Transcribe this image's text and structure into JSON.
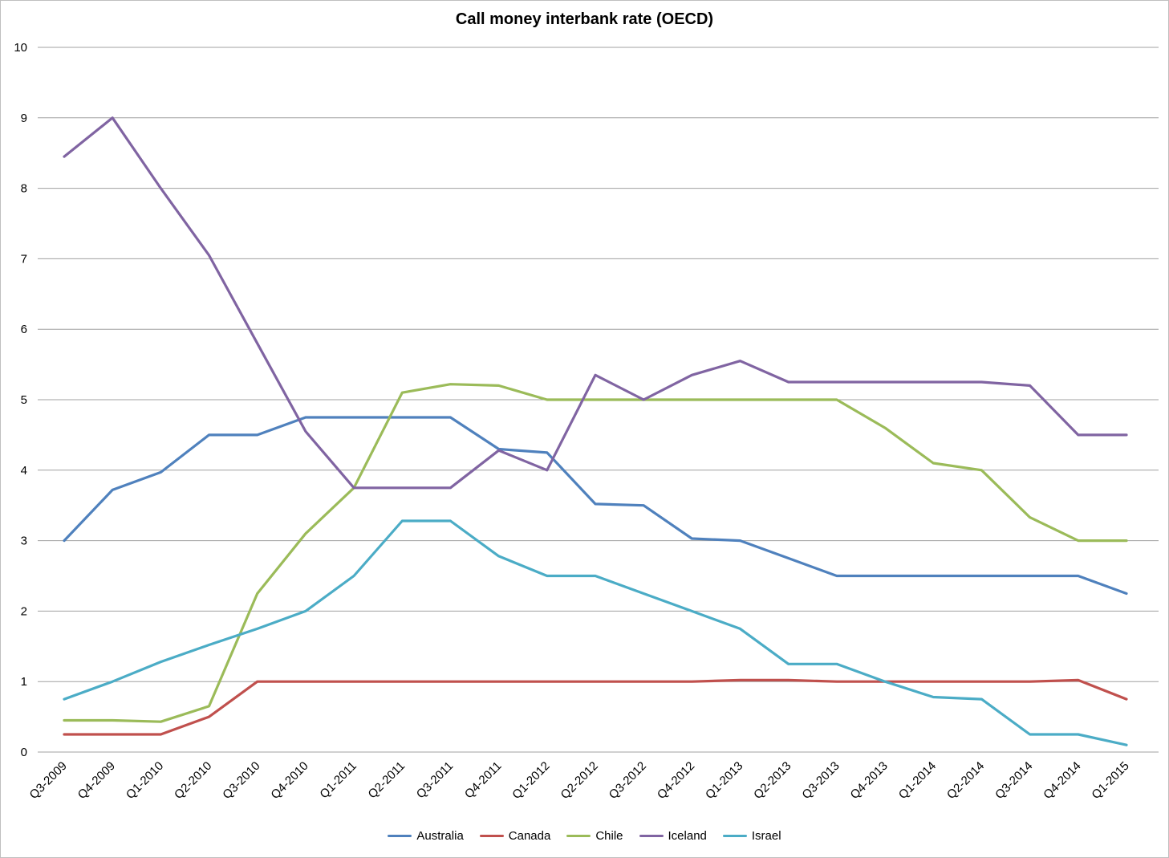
{
  "chart_data": {
    "type": "line",
    "title": "Call money interbank rate (OECD)",
    "categories": [
      "Q3-2009",
      "Q4-2009",
      "Q1-2010",
      "Q2-2010",
      "Q3-2010",
      "Q4-2010",
      "Q1-2011",
      "Q2-2011",
      "Q3-2011",
      "Q4-2011",
      "Q1-2012",
      "Q2-2012",
      "Q3-2012",
      "Q4-2012",
      "Q1-2013",
      "Q2-2013",
      "Q3-2013",
      "Q4-2013",
      "Q1-2014",
      "Q2-2014",
      "Q3-2014",
      "Q4-2014",
      "Q1-2015"
    ],
    "series": [
      {
        "name": "Australia",
        "color": "#4F81BD",
        "values": [
          3.0,
          3.72,
          3.97,
          4.5,
          4.5,
          4.75,
          4.75,
          4.75,
          4.75,
          4.3,
          4.25,
          3.52,
          3.5,
          3.03,
          3.0,
          2.75,
          2.5,
          2.5,
          2.5,
          2.5,
          2.5,
          2.5,
          2.25
        ]
      },
      {
        "name": "Canada",
        "color": "#C0504D",
        "values": [
          0.25,
          0.25,
          0.25,
          0.5,
          1.0,
          1.0,
          1.0,
          1.0,
          1.0,
          1.0,
          1.0,
          1.0,
          1.0,
          1.0,
          1.02,
          1.02,
          1.0,
          1.0,
          1.0,
          1.0,
          1.0,
          1.02,
          0.75
        ]
      },
      {
        "name": "Chile",
        "color": "#9BBB59",
        "values": [
          0.45,
          0.45,
          0.43,
          0.65,
          2.25,
          3.1,
          3.75,
          5.1,
          5.22,
          5.2,
          5.0,
          5.0,
          5.0,
          5.0,
          5.0,
          5.0,
          5.0,
          4.6,
          4.1,
          4.0,
          3.33,
          3.0,
          3.0
        ]
      },
      {
        "name": "Iceland",
        "color": "#8064A2",
        "values": [
          8.45,
          9.0,
          8.0,
          7.05,
          5.8,
          4.55,
          3.75,
          3.75,
          3.75,
          4.28,
          4.0,
          5.35,
          5.0,
          5.35,
          5.55,
          5.25,
          5.25,
          5.25,
          5.25,
          5.25,
          5.2,
          4.5,
          4.5
        ]
      },
      {
        "name": "Israel",
        "color": "#4BACC6",
        "values": [
          0.75,
          1.0,
          1.28,
          1.52,
          1.75,
          2.0,
          2.5,
          3.28,
          3.28,
          2.78,
          2.5,
          2.5,
          2.25,
          2.0,
          1.75,
          1.25,
          1.25,
          1.0,
          0.78,
          0.75,
          0.25,
          0.25,
          0.1
        ]
      }
    ],
    "ylim": [
      0,
      10
    ],
    "yticks": [
      0,
      1,
      2,
      3,
      4,
      5,
      6,
      7,
      8,
      9,
      10
    ],
    "grid": true,
    "gridline_color": "#A0A0A0",
    "axis_text_color": "#000000",
    "legend_position": "bottom"
  }
}
